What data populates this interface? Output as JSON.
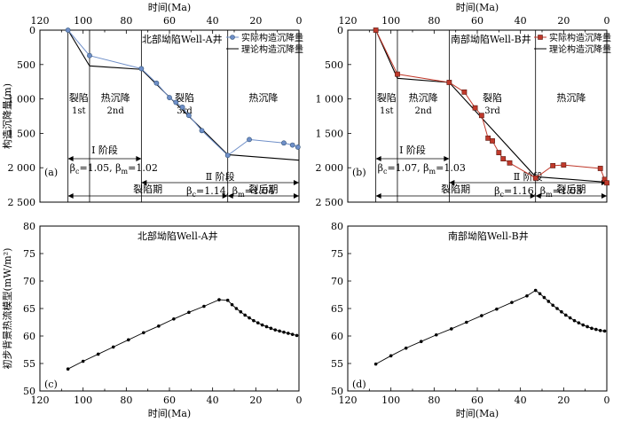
{
  "chart_data": [
    {
      "panel_id": "(a)",
      "type": "line",
      "title": "北部坳陷Well-A井",
      "xlabel": "时间(Ma)",
      "ylabel": "构造沉降量(m)",
      "xlim": [
        120,
        0
      ],
      "ylim": [
        2500,
        0
      ],
      "xticks": [
        120,
        100,
        80,
        60,
        40,
        20,
        0
      ],
      "yticks": [
        0,
        500,
        1000,
        1500,
        2000,
        2500
      ],
      "ytick_labels": [
        "0",
        "500",
        "1 000",
        "1 500",
        "2 000",
        "2 500"
      ],
      "legend": [
        "实际构造沉降量",
        "理论构造沉降量"
      ],
      "series": [
        {
          "name": "实际构造沉降量",
          "marker": "circle",
          "color": "#6f8fc8",
          "x": [
            107,
            97,
            73,
            66,
            60,
            57,
            54,
            51,
            45,
            33,
            23,
            7,
            3,
            0.5
          ],
          "y": [
            0,
            370,
            560,
            770,
            980,
            1050,
            1120,
            1240,
            1460,
            1820,
            1590,
            1640,
            1670,
            1700
          ]
        },
        {
          "name": "理论构造沉降量",
          "color": "#000000",
          "x": [
            107,
            97,
            73,
            33,
            0
          ],
          "y": [
            0,
            520,
            570,
            1810,
            1890
          ]
        }
      ],
      "vlines": [
        107,
        97,
        73,
        33
      ],
      "phase_labels": [
        "裂陷",
        "1st",
        "热沉降",
        "2nd",
        "裂陷",
        "3rd",
        "热沉降"
      ],
      "stage_I": {
        "label": "Ⅰ 阶段",
        "beta": "βc=1.05, βm=1.02"
      },
      "stage_II": {
        "label": "Ⅱ 阶段",
        "beta": "βc=1.14, βm=1.04"
      },
      "periods": [
        "裂陷期",
        "裂后期"
      ]
    },
    {
      "panel_id": "(b)",
      "type": "line",
      "title": "南部坳陷Well-B井",
      "xlabel": "时间(Ma)",
      "xlim": [
        120,
        0
      ],
      "ylim": [
        2500,
        0
      ],
      "xticks": [
        120,
        100,
        80,
        60,
        40,
        20,
        0
      ],
      "yticks": [
        0,
        500,
        1000,
        1500,
        2000,
        2500
      ],
      "ytick_labels": [
        "0",
        "500",
        "1 000",
        "1 500",
        "2 000",
        "2 500"
      ],
      "legend": [
        "实际构造沉降量",
        "理论构造沉降量"
      ],
      "series": [
        {
          "name": "实际构造沉降量",
          "marker": "square",
          "color": "#c0392b",
          "x": [
            107,
            97,
            73,
            66,
            61,
            58,
            55,
            53,
            50,
            48,
            45,
            33,
            25,
            20,
            3,
            1,
            0
          ],
          "y": [
            0,
            640,
            760,
            900,
            1130,
            1240,
            1570,
            1610,
            1780,
            1870,
            1930,
            2150,
            1970,
            1960,
            2010,
            2170,
            2220
          ]
        },
        {
          "name": "理论构造沉降量",
          "color": "#000000",
          "x": [
            107,
            97,
            73,
            33,
            0
          ],
          "y": [
            0,
            700,
            760,
            2130,
            2210
          ]
        }
      ],
      "vlines": [
        107,
        97,
        73,
        33
      ],
      "phase_labels": [
        "裂陷",
        "1st",
        "热沉降",
        "2nd",
        "裂陷",
        "3rd",
        "热沉降"
      ],
      "stage_I": {
        "label": "Ⅰ 阶段",
        "beta": "βc=1.07, βm=1.03"
      },
      "stage_II": {
        "label": "Ⅱ 阶段",
        "beta": "βc=1.16, βm=1.03"
      },
      "periods": [
        "裂陷期",
        "裂后期"
      ]
    },
    {
      "panel_id": "(c)",
      "type": "line",
      "title": "北部坳陷Well-A井",
      "xlabel": "时间(Ma)",
      "ylabel": "初步背景热流模型(mW/m²)",
      "xlim": [
        120,
        0
      ],
      "ylim": [
        50,
        80
      ],
      "xticks": [
        120,
        100,
        80,
        60,
        40,
        20,
        0
      ],
      "yticks": [
        50,
        55,
        60,
        65,
        70,
        75,
        80
      ],
      "series": [
        {
          "marker": "circle",
          "color": "#000000",
          "x": [
            107,
            100,
            93,
            86,
            79,
            72,
            65,
            58,
            51,
            44,
            37,
            33,
            31,
            29,
            27,
            25,
            23,
            21,
            19,
            17,
            15,
            13,
            11,
            9,
            7,
            5,
            3,
            1
          ],
          "y": [
            54.0,
            55.4,
            56.7,
            58.0,
            59.3,
            60.6,
            61.8,
            63.1,
            64.3,
            65.4,
            66.6,
            66.5,
            65.7,
            65.0,
            64.4,
            63.8,
            63.3,
            62.8,
            62.4,
            62.0,
            61.7,
            61.4,
            61.1,
            60.9,
            60.7,
            60.5,
            60.3,
            60.1
          ]
        }
      ]
    },
    {
      "panel_id": "(d)",
      "type": "line",
      "title": "南部坳陷Well-B井",
      "xlabel": "时间(Ma)",
      "xlim": [
        120,
        0
      ],
      "ylim": [
        50,
        80
      ],
      "xticks": [
        120,
        100,
        80,
        60,
        40,
        20,
        0
      ],
      "yticks": [
        50,
        55,
        60,
        65,
        70,
        75,
        80
      ],
      "series": [
        {
          "marker": "circle",
          "color": "#000000",
          "x": [
            107,
            100,
            93,
            86,
            79,
            72,
            65,
            58,
            51,
            44,
            37,
            33,
            31,
            29,
            27,
            25,
            23,
            21,
            19,
            17,
            15,
            13,
            11,
            9,
            7,
            5,
            3,
            1
          ],
          "y": [
            54.9,
            56.4,
            57.8,
            59.0,
            60.2,
            61.3,
            62.5,
            63.7,
            64.9,
            66.1,
            67.3,
            68.3,
            67.7,
            67.0,
            66.3,
            65.6,
            65.0,
            64.4,
            63.8,
            63.3,
            62.8,
            62.4,
            62.0,
            61.7,
            61.4,
            61.2,
            61.0,
            60.9
          ]
        }
      ]
    }
  ]
}
